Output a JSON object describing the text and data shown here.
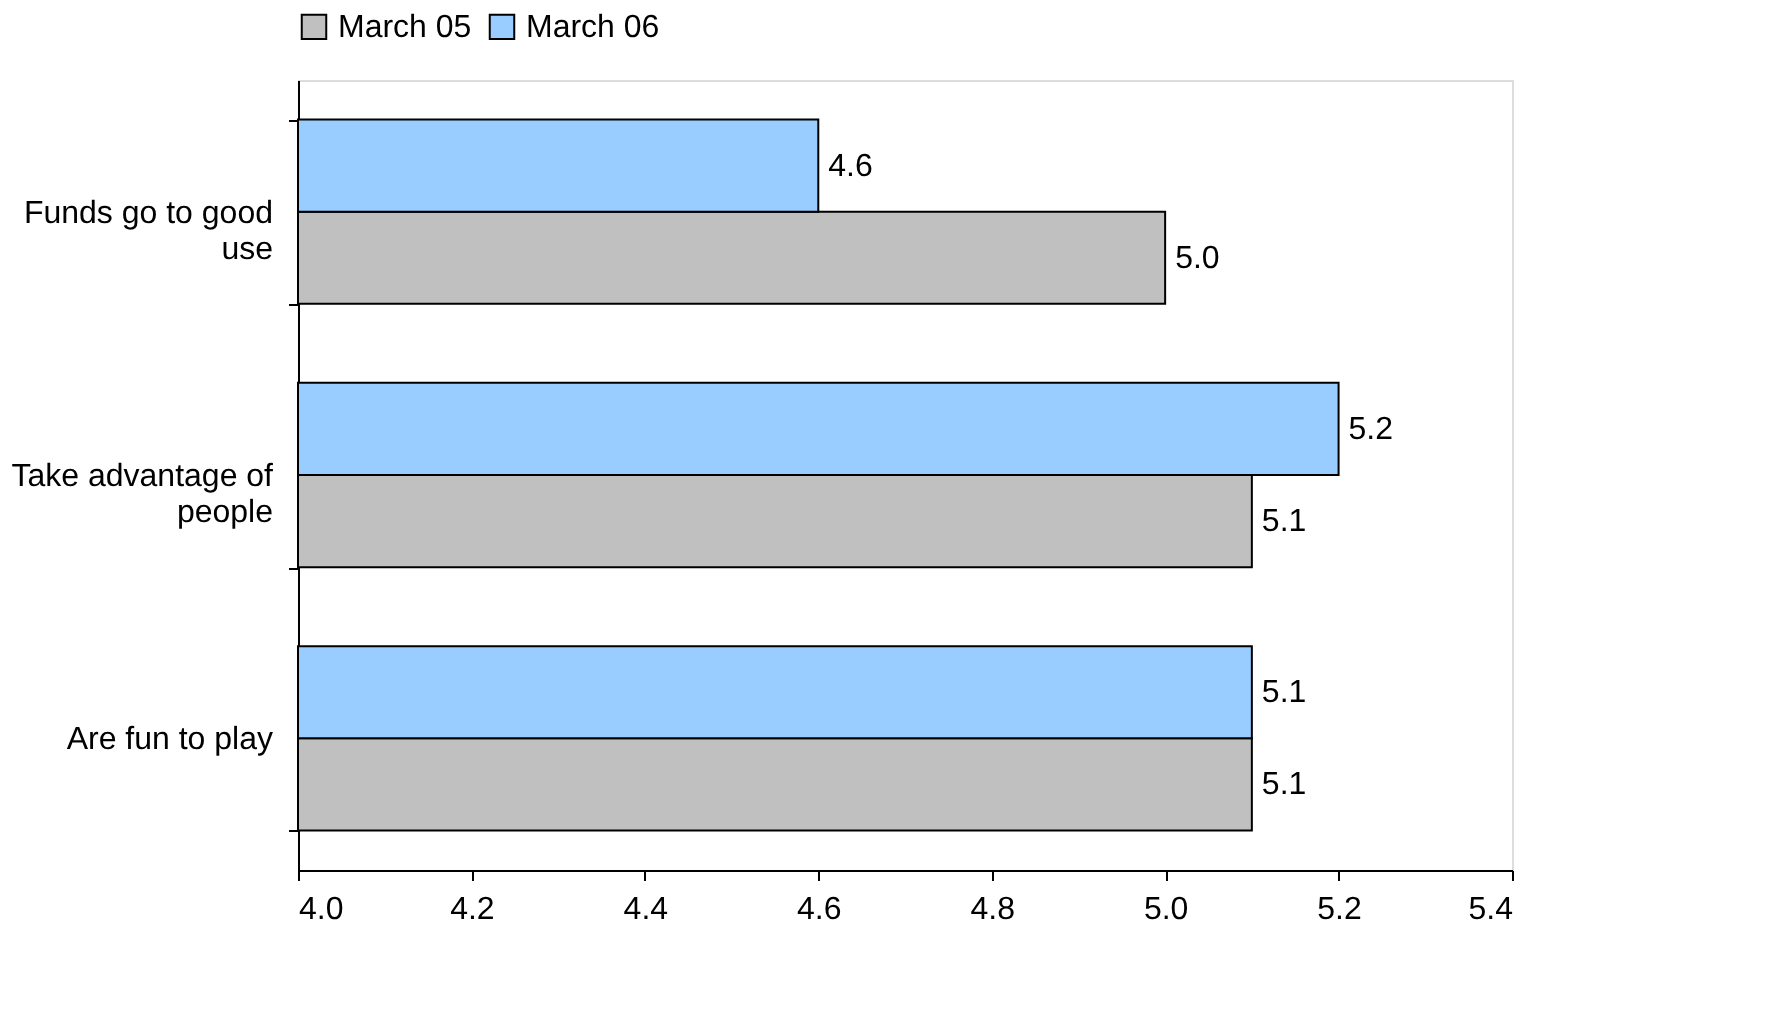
{
  "chart_data": {
    "type": "bar",
    "orientation": "horizontal",
    "categories": [
      "Funds go to good use",
      "Take advantage of people",
      "Are fun to play"
    ],
    "series": [
      {
        "name": "March 05",
        "color": "#c0c0c0",
        "values": [
          5.0,
          5.1,
          5.1
        ],
        "value_labels": [
          "5.0",
          "5.1",
          "5.1"
        ]
      },
      {
        "name": "March 06",
        "color": "#99ccff",
        "values": [
          4.6,
          5.2,
          5.1
        ],
        "value_labels": [
          "4.6",
          "5.2",
          "5.1"
        ]
      }
    ],
    "xlim": [
      4.0,
      5.4
    ],
    "xticks": [
      {
        "value": 4.0,
        "label": "4.0"
      },
      {
        "value": 4.2,
        "label": "4.2"
      },
      {
        "value": 4.4,
        "label": "4.4"
      },
      {
        "value": 4.6,
        "label": "4.6"
      },
      {
        "value": 4.8,
        "label": "4.8"
      },
      {
        "value": 5.0,
        "label": "5.0"
      },
      {
        "value": 5.2,
        "label": "5.2"
      },
      {
        "value": 5.4,
        "label": "5.4"
      }
    ],
    "grid": false,
    "legend": "top"
  }
}
